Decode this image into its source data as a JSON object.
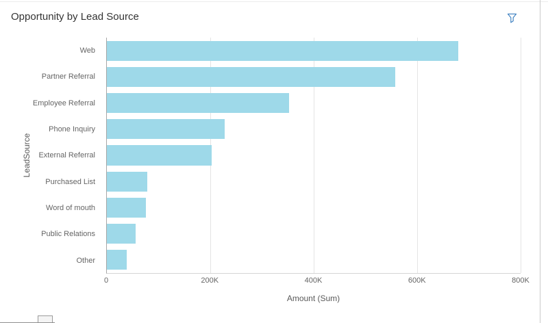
{
  "panel": {
    "title": "Opportunity by Lead Source"
  },
  "toolbar": {
    "filter_icon": "filter-funnel-icon"
  },
  "colors": {
    "bar": "#9ed9e9",
    "gridline": "#e4e4e4",
    "axis": "#a6a6a6",
    "filter_accent": "#3a7ebf",
    "title_text": "#333333",
    "label_text": "#646464"
  },
  "chart_data": {
    "type": "bar",
    "orientation": "horizontal",
    "title": "Opportunity by Lead Source",
    "xlabel": "Amount (Sum)",
    "ylabel": "LeadSource",
    "categories": [
      "Web",
      "Partner Referral",
      "Employee Referral",
      "Phone Inquiry",
      "External Referral",
      "Purchased List",
      "Word of mouth",
      "Public Relations",
      "Other"
    ],
    "values": [
      680000,
      557000,
      352000,
      228000,
      203000,
      78000,
      76000,
      55000,
      38000
    ],
    "xlim": [
      0,
      800000
    ],
    "ticks": [
      {
        "value": 0,
        "label": "0"
      },
      {
        "value": 200000,
        "label": "200K"
      },
      {
        "value": 400000,
        "label": "400K"
      },
      {
        "value": 600000,
        "label": "600K"
      },
      {
        "value": 800000,
        "label": "800K"
      }
    ],
    "grid": true,
    "legend": false,
    "bar_color": "#9ed9e9"
  }
}
